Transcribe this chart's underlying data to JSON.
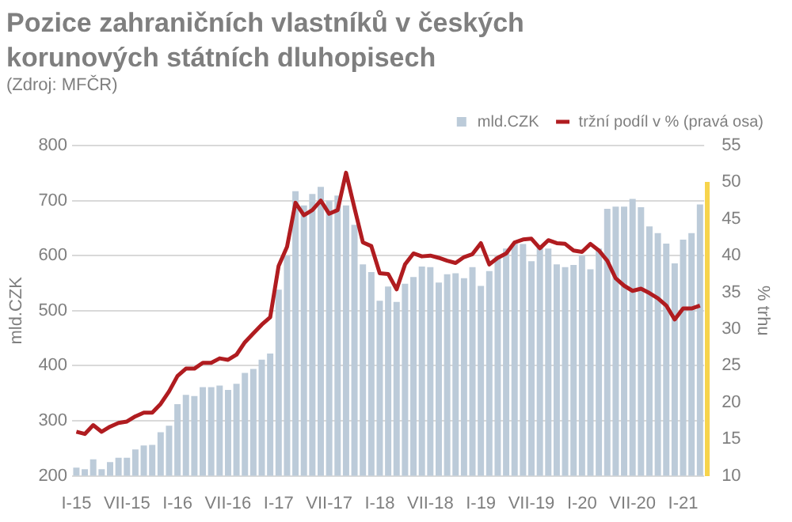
{
  "chart_data": {
    "type": "bar",
    "title": "Pozice zahraničních vlastníků v českých korunových státních dluhopisech",
    "subtitle": "(Zdroj: MFČR)",
    "ylabel": "mld.CZK",
    "y2label": "% trhu",
    "categories": [
      "I-15",
      null,
      null,
      null,
      null,
      null,
      "VII-15",
      null,
      null,
      null,
      null,
      null,
      "I-16",
      null,
      null,
      null,
      null,
      null,
      "VII-16",
      null,
      null,
      null,
      null,
      null,
      "I-17",
      null,
      null,
      null,
      null,
      null,
      "VII-17",
      null,
      null,
      null,
      null,
      null,
      "I-18",
      null,
      null,
      null,
      null,
      null,
      "VII-18",
      null,
      null,
      null,
      null,
      null,
      "I-19",
      null,
      null,
      null,
      null,
      null,
      "VII-19",
      null,
      null,
      null,
      null,
      null,
      "I-20",
      null,
      null,
      null,
      null,
      null,
      "VII-20",
      null,
      null,
      null,
      null,
      null,
      "I-21",
      null,
      null
    ],
    "series": [
      {
        "name": "mld.CZK",
        "color": "#bccbd9",
        "values": [
          215,
          212,
          230,
          212,
          225,
          233,
          233,
          248,
          255,
          256,
          279,
          291,
          330,
          347,
          345,
          361,
          361,
          364,
          356,
          367,
          387,
          394,
          411,
          422,
          538,
          600,
          717,
          691,
          712,
          725,
          700,
          709,
          691,
          656,
          584,
          570,
          518,
          544,
          516,
          549,
          561,
          580,
          579,
          551,
          566,
          568,
          559,
          579,
          545,
          572,
          599,
          613,
          622,
          621,
          590,
          615,
          613,
          584,
          579,
          583,
          600,
          575,
          613,
          685,
          689,
          689,
          703,
          688,
          653,
          641,
          622,
          586,
          629,
          641,
          693
        ]
      },
      {
        "name": "tržní podíl v % (pravá osa)",
        "type": "line",
        "axis": "y2",
        "color": "#b01c20",
        "values": [
          16.0,
          15.7,
          16.9,
          16.0,
          16.7,
          17.2,
          17.4,
          18.1,
          18.6,
          18.6,
          19.8,
          21.5,
          23.6,
          24.6,
          24.6,
          25.4,
          25.4,
          26.0,
          25.8,
          26.5,
          28.2,
          29.4,
          30.6,
          31.6,
          38.6,
          41.2,
          47.2,
          45.5,
          46.2,
          47.5,
          45.7,
          46.2,
          51.3,
          46.5,
          41.8,
          41.3,
          37.6,
          37.5,
          35.4,
          38.8,
          40.3,
          39.9,
          40.0,
          39.7,
          39.3,
          39.0,
          39.8,
          40.2,
          41.7,
          38.8,
          39.7,
          40.3,
          41.8,
          42.2,
          42.3,
          41.0,
          42.1,
          41.7,
          41.6,
          40.7,
          40.5,
          41.6,
          40.7,
          39.3,
          36.9,
          35.9,
          35.2,
          35.5,
          34.9,
          34.2,
          33.2,
          31.3,
          32.8,
          32.8,
          33.2
        ]
      }
    ],
    "ylim": [
      200,
      800
    ],
    "yticks": [
      200,
      300,
      400,
      500,
      600,
      700,
      800
    ],
    "y2lim": [
      10,
      55
    ],
    "y2ticks": [
      10,
      15,
      20,
      25,
      30,
      35,
      40,
      45,
      50,
      55
    ],
    "grid": "y",
    "legend": "top right",
    "marker": "none"
  }
}
